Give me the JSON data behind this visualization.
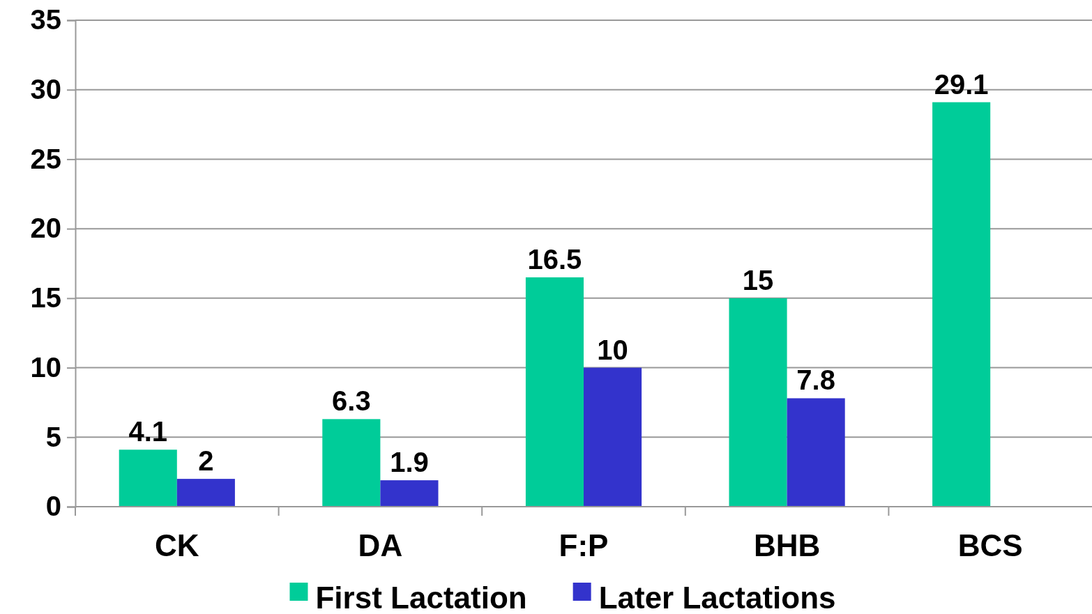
{
  "chart_data": {
    "type": "bar",
    "categories": [
      "CK",
      "DA",
      "F:P",
      "BHB",
      "BCS"
    ],
    "series": [
      {
        "name": "First Lactation",
        "color": "#00cc99",
        "values": [
          4.1,
          6.3,
          16.5,
          15,
          29.1
        ]
      },
      {
        "name": "Later Lactations",
        "color": "#3333cc",
        "values": [
          2,
          1.9,
          10,
          7.8,
          null
        ]
      }
    ],
    "ylim": [
      0,
      35
    ],
    "yticks": [
      0,
      5,
      10,
      15,
      20,
      25,
      30,
      35
    ],
    "grid": "y",
    "legend": "bottom",
    "data_labels": true
  }
}
